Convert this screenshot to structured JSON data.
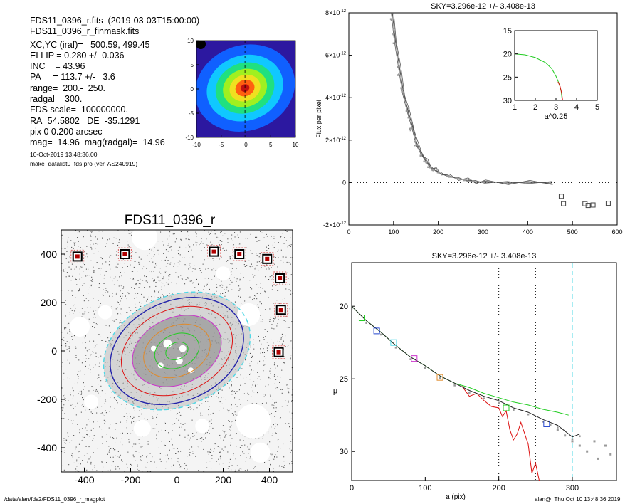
{
  "header": {
    "lines": [
      "FDS11_0396_r.fits  (2019-03-03T15:00:00)",
      "FDS11_0396_r_finmask.fits",
      "XC,YC (iraf)=   500.59, 499.45",
      "ELLIP = 0.280 +/- 0.036",
      "INC    = 43.96",
      "PA     = 113.7 +/-   3.6",
      "range=  200.-  250.",
      "radgal=  300.",
      "FDS scale=  100000000.",
      "RA=54.5802   DE=-35.1291",
      "pix 0 0.200 arcsec",
      "mag=  14.96  mag(radgal)=  14.96"
    ],
    "small_lines": [
      "10-Oct-2019 13:48:36.00",
      "make_datalist0_fds.pro (ver. AS240919)"
    ]
  },
  "footer": {
    "left": "/data/alan/fds2/FDS11_0396_r_magplot",
    "right": "alan@  Thu Oct 10 13:48:36 2019"
  },
  "colors": {
    "cyan_dash": "#4fd8e6",
    "profile": "#555555",
    "points": "#999999",
    "green": "#22cc22",
    "red": "#dd1111",
    "blue": "#2244cc",
    "magenta": "#cc33cc",
    "orange": "#e08a2a"
  },
  "chart_data": [
    {
      "type": "heatmap",
      "description_of_axes": "thumbnail",
      "x_ticks": [
        "-10",
        "-5",
        "0",
        "5",
        "10"
      ],
      "y_ticks": [
        "10",
        "5",
        "0",
        "-5",
        "-10"
      ],
      "xlim": [
        -10,
        10
      ],
      "ylim": [
        -10,
        10
      ],
      "colormap": [
        "#2c18a0",
        "#1060ff",
        "#10c8ff",
        "#20e080",
        "#a0f020",
        "#f0e020",
        "#ff6010",
        "#c01010"
      ]
    },
    {
      "type": "scatter",
      "title": "FDS11_0396_r",
      "x_ticks": [
        "-400",
        "-200",
        "0",
        "200",
        "400"
      ],
      "y_ticks": [
        "400",
        "200",
        "0",
        "-200",
        "-400"
      ],
      "xlim": [
        -500,
        500
      ],
      "ylim": [
        -500,
        500
      ],
      "masked_stars": [
        {
          "x": -430,
          "y": 390
        },
        {
          "x": -225,
          "y": 400
        },
        {
          "x": 160,
          "y": 410
        },
        {
          "x": 270,
          "y": 400
        },
        {
          "x": 390,
          "y": 380
        },
        {
          "x": 445,
          "y": 300
        },
        {
          "x": 450,
          "y": 170
        },
        {
          "x": 440,
          "y": -5
        }
      ],
      "ellipses": [
        {
          "a": 50,
          "color": "#22cc22"
        },
        {
          "a": 100,
          "color": "#22cc22"
        },
        {
          "a": 150,
          "color": "#e08a2a"
        },
        {
          "a": 200,
          "color": "#cc33cc"
        },
        {
          "a": 250,
          "color": "#dd1111"
        },
        {
          "a": 300,
          "color": "#2222aa"
        },
        {
          "a": 330,
          "color": "#4fd8e6"
        }
      ],
      "pa_deg": 113.7,
      "ellip": 0.28
    },
    {
      "type": "line",
      "title": "SKY=3.296e-12 +/- 3.408e-13",
      "ylabel": "Flux per pixel",
      "xlim": [
        0,
        600
      ],
      "ylim": [
        -2e-12,
        8e-12
      ],
      "x_ticks": [
        "0",
        "100",
        "200",
        "300",
        "400",
        "500",
        "600"
      ],
      "y_ticks": [
        {
          "v": -2e-12,
          "m": "-2",
          "e": "-12"
        },
        {
          "v": 0,
          "m": "0",
          "e": ""
        },
        {
          "v": 2e-12,
          "m": "2",
          "e": "-12"
        },
        {
          "v": 4e-12,
          "m": "4",
          "e": "-12"
        },
        {
          "v": 6e-12,
          "m": "6",
          "e": "-12"
        },
        {
          "v": 8e-12,
          "m": "8",
          "e": "-12"
        }
      ],
      "vline_cyan": 300,
      "profile": [
        [
          95,
          8e-12
        ],
        [
          100,
          6.8e-12
        ],
        [
          110,
          5.3e-12
        ],
        [
          120,
          4.2e-12
        ],
        [
          130,
          3.3e-12
        ],
        [
          140,
          2.5e-12
        ],
        [
          150,
          1.8e-12
        ],
        [
          160,
          1.35e-12
        ],
        [
          170,
          1e-12
        ],
        [
          180,
          7.5e-13
        ],
        [
          190,
          6e-13
        ],
        [
          200,
          4.5e-13
        ],
        [
          220,
          3e-13
        ],
        [
          240,
          2e-13
        ],
        [
          260,
          1.2e-13
        ],
        [
          280,
          5e-14
        ],
        [
          300,
          2e-14
        ],
        [
          350,
          0.0
        ],
        [
          400,
          0.0
        ],
        [
          450,
          0.0
        ]
      ],
      "sky_points": [
        {
          "x": 475,
          "y": -6.5e-13
        },
        {
          "x": 480,
          "y": -1e-12
        },
        {
          "x": 528,
          "y": -1e-12
        },
        {
          "x": 535,
          "y": -1.08e-12
        },
        {
          "x": 546,
          "y": -1.06e-12
        },
        {
          "x": 580,
          "y": -9.8e-13
        }
      ],
      "inset": {
        "xlabel": "a^0.25",
        "xlim": [
          1,
          5
        ],
        "ylim": [
          30,
          15
        ],
        "x_ticks": [
          "1",
          "2",
          "3",
          "4",
          "5"
        ],
        "y_ticks": [
          "15",
          "20",
          "25",
          "30"
        ],
        "green_curve": [
          [
            1.0,
            20.0
          ],
          [
            1.5,
            20.2
          ],
          [
            2.0,
            20.8
          ],
          [
            2.5,
            21.9
          ],
          [
            2.8,
            23.2
          ],
          [
            3.0,
            24.8
          ],
          [
            3.15,
            26.4
          ],
          [
            3.25,
            28.0
          ],
          [
            3.3,
            29.9
          ]
        ],
        "red_curve": [
          [
            3.1,
            26.0
          ],
          [
            3.2,
            27.0
          ],
          [
            3.28,
            28.5
          ],
          [
            3.32,
            29.9
          ]
        ]
      }
    },
    {
      "type": "line",
      "title": "SKY=3.296e-12 +/- 3.408e-13",
      "xlabel": "a (pix)",
      "ylabel": "μ",
      "xlim": [
        0,
        360
      ],
      "ylim": [
        32,
        17
      ],
      "x_ticks": [
        "0",
        "100",
        "200",
        "300"
      ],
      "y_ticks": [
        "20",
        "25",
        "30"
      ],
      "vlines_dotted": [
        200,
        250
      ],
      "vline_cyan": 300,
      "black": [
        [
          0,
          20.0
        ],
        [
          20,
          21.0
        ],
        [
          40,
          21.8
        ],
        [
          60,
          22.7
        ],
        [
          80,
          23.5
        ],
        [
          100,
          24.1
        ],
        [
          120,
          24.8
        ],
        [
          140,
          25.3
        ],
        [
          160,
          25.8
        ],
        [
          180,
          26.2
        ],
        [
          200,
          26.5
        ],
        [
          220,
          27.0
        ],
        [
          240,
          27.3
        ],
        [
          260,
          27.8
        ],
        [
          280,
          28.2
        ],
        [
          300,
          29.0
        ],
        [
          310,
          28.8
        ]
      ],
      "green": [
        [
          0,
          20.0
        ],
        [
          20,
          21.0
        ],
        [
          40,
          21.8
        ],
        [
          60,
          22.7
        ],
        [
          80,
          23.5
        ],
        [
          100,
          24.1
        ],
        [
          120,
          24.8
        ],
        [
          140,
          25.3
        ],
        [
          160,
          25.6
        ],
        [
          180,
          26.0
        ],
        [
          200,
          26.3
        ],
        [
          220,
          26.6
        ],
        [
          240,
          26.8
        ],
        [
          260,
          27.1
        ],
        [
          280,
          27.3
        ],
        [
          295,
          27.5
        ]
      ],
      "red": [
        [
          150,
          25.5
        ],
        [
          160,
          26.2
        ],
        [
          170,
          26.0
        ],
        [
          180,
          26.5
        ],
        [
          190,
          26.9
        ],
        [
          200,
          27.0
        ],
        [
          205,
          27.6
        ],
        [
          210,
          27.2
        ],
        [
          215,
          28.5
        ],
        [
          220,
          29.2
        ],
        [
          225,
          28.8
        ],
        [
          230,
          28.0
        ],
        [
          240,
          29.5
        ],
        [
          245,
          31.5
        ],
        [
          250,
          30.8
        ],
        [
          255,
          32.0
        ]
      ],
      "grey_points": [
        [
          270,
          28.2
        ],
        [
          280,
          28.5
        ],
        [
          290,
          28.9
        ],
        [
          300,
          29.3
        ],
        [
          310,
          29.6
        ],
        [
          320,
          30.0
        ],
        [
          330,
          29.3
        ],
        [
          335,
          30.5
        ],
        [
          345,
          29.6
        ],
        [
          352,
          30.2
        ]
      ],
      "squares": [
        {
          "x": 14,
          "y": 20.8,
          "color": "#22cc22"
        },
        {
          "x": 34,
          "y": 21.7,
          "color": "#2244cc"
        },
        {
          "x": 57,
          "y": 22.5,
          "color": "#4fd8e6"
        },
        {
          "x": 85,
          "y": 23.6,
          "color": "#cc33cc"
        },
        {
          "x": 120,
          "y": 24.9,
          "color": "#e08a2a"
        },
        {
          "x": 210,
          "y": 27.0,
          "color": "#22cc22"
        },
        {
          "x": 265,
          "y": 28.1,
          "color": "#2244cc"
        }
      ]
    }
  ]
}
